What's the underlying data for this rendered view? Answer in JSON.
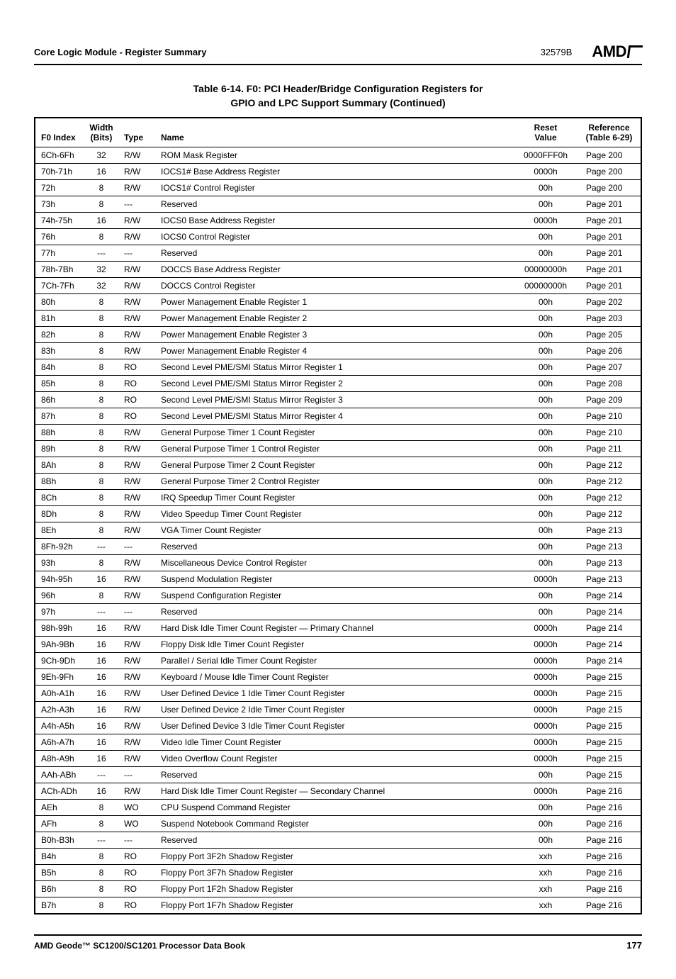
{
  "header": {
    "section": "Core Logic Module - Register Summary",
    "docnum": "32579B",
    "brand": "AMD"
  },
  "table": {
    "title_line1": "Table 6-14.  F0: PCI Header/Bridge Configuration Registers for",
    "title_line2": "GPIO and LPC Support Summary  (Continued)",
    "columns": {
      "idx": "F0 Index",
      "width_l1": "Width",
      "width_l2": "(Bits)",
      "type": "Type",
      "name": "Name",
      "reset_l1": "Reset",
      "reset_l2": "Value",
      "ref_l1": "Reference",
      "ref_l2": "(Table 6-29)"
    },
    "rows": [
      {
        "idx": "6Ch-6Fh",
        "width": "32",
        "type": "R/W",
        "name": "ROM Mask Register",
        "reset": "0000FFF0h",
        "ref": "Page 200"
      },
      {
        "idx": "70h-71h",
        "width": "16",
        "type": "R/W",
        "name": "IOCS1# Base Address Register",
        "reset": "0000h",
        "ref": "Page 200"
      },
      {
        "idx": "72h",
        "width": "8",
        "type": "R/W",
        "name": "IOCS1# Control Register",
        "reset": "00h",
        "ref": "Page 200"
      },
      {
        "idx": "73h",
        "width": "8",
        "type": "---",
        "name": "Reserved",
        "reset": "00h",
        "ref": "Page 201"
      },
      {
        "idx": "74h-75h",
        "width": "16",
        "type": "R/W",
        "name": "IOCS0 Base Address Register",
        "reset": "0000h",
        "ref": "Page 201"
      },
      {
        "idx": "76h",
        "width": "8",
        "type": "R/W",
        "name": "IOCS0 Control Register",
        "reset": "00h",
        "ref": "Page 201"
      },
      {
        "idx": "77h",
        "width": "---",
        "type": "---",
        "name": "Reserved",
        "reset": "00h",
        "ref": "Page 201"
      },
      {
        "idx": "78h-7Bh",
        "width": "32",
        "type": "R/W",
        "name": "DOCCS Base Address Register",
        "reset": "00000000h",
        "ref": "Page 201"
      },
      {
        "idx": "7Ch-7Fh",
        "width": "32",
        "type": "R/W",
        "name": "DOCCS Control Register",
        "reset": "00000000h",
        "ref": "Page 201"
      },
      {
        "idx": "80h",
        "width": "8",
        "type": "R/W",
        "name": "Power Management Enable Register 1",
        "reset": "00h",
        "ref": "Page 202"
      },
      {
        "idx": "81h",
        "width": "8",
        "type": "R/W",
        "name": "Power Management Enable Register 2",
        "reset": "00h",
        "ref": "Page 203"
      },
      {
        "idx": "82h",
        "width": "8",
        "type": "R/W",
        "name": "Power Management Enable Register 3",
        "reset": "00h",
        "ref": "Page 205"
      },
      {
        "idx": "83h",
        "width": "8",
        "type": "R/W",
        "name": "Power Management Enable Register 4",
        "reset": "00h",
        "ref": "Page 206"
      },
      {
        "idx": "84h",
        "width": "8",
        "type": "RO",
        "name": "Second Level PME/SMI Status Mirror Register 1",
        "reset": "00h",
        "ref": "Page 207"
      },
      {
        "idx": "85h",
        "width": "8",
        "type": "RO",
        "name": "Second Level PME/SMI Status Mirror Register 2",
        "reset": "00h",
        "ref": "Page 208"
      },
      {
        "idx": "86h",
        "width": "8",
        "type": "RO",
        "name": "Second Level PME/SMI Status Mirror Register 3",
        "reset": "00h",
        "ref": "Page 209"
      },
      {
        "idx": "87h",
        "width": "8",
        "type": "RO",
        "name": "Second Level PME/SMI Status Mirror Register 4",
        "reset": "00h",
        "ref": "Page 210"
      },
      {
        "idx": "88h",
        "width": "8",
        "type": "R/W",
        "name": "General Purpose Timer 1 Count Register",
        "reset": "00h",
        "ref": "Page 210"
      },
      {
        "idx": "89h",
        "width": "8",
        "type": "R/W",
        "name": "General Purpose Timer 1 Control Register",
        "reset": "00h",
        "ref": "Page 211"
      },
      {
        "idx": "8Ah",
        "width": "8",
        "type": "R/W",
        "name": "General Purpose Timer 2 Count Register",
        "reset": "00h",
        "ref": "Page 212"
      },
      {
        "idx": "8Bh",
        "width": "8",
        "type": "R/W",
        "name": "General Purpose Timer 2 Control Register",
        "reset": "00h",
        "ref": "Page 212"
      },
      {
        "idx": "8Ch",
        "width": "8",
        "type": "R/W",
        "name": "IRQ Speedup Timer Count Register",
        "reset": "00h",
        "ref": "Page 212"
      },
      {
        "idx": "8Dh",
        "width": "8",
        "type": "R/W",
        "name": "Video Speedup Timer Count Register",
        "reset": "00h",
        "ref": "Page 212"
      },
      {
        "idx": "8Eh",
        "width": "8",
        "type": "R/W",
        "name": "VGA Timer Count Register",
        "reset": "00h",
        "ref": "Page 213"
      },
      {
        "idx": "8Fh-92h",
        "width": "---",
        "type": "---",
        "name": "Reserved",
        "reset": "00h",
        "ref": "Page 213"
      },
      {
        "idx": "93h",
        "width": "8",
        "type": "R/W",
        "name": "Miscellaneous Device Control Register",
        "reset": "00h",
        "ref": "Page 213"
      },
      {
        "idx": "94h-95h",
        "width": "16",
        "type": "R/W",
        "name": "Suspend Modulation Register",
        "reset": "0000h",
        "ref": "Page 213"
      },
      {
        "idx": "96h",
        "width": "8",
        "type": "R/W",
        "name": "Suspend Configuration Register",
        "reset": "00h",
        "ref": "Page 214"
      },
      {
        "idx": "97h",
        "width": "---",
        "type": "---",
        "name": "Reserved",
        "reset": "00h",
        "ref": "Page 214"
      },
      {
        "idx": "98h-99h",
        "width": "16",
        "type": "R/W",
        "name": "Hard Disk Idle Timer Count Register — Primary Channel",
        "reset": "0000h",
        "ref": "Page 214"
      },
      {
        "idx": "9Ah-9Bh",
        "width": "16",
        "type": "R/W",
        "name": "Floppy Disk Idle Timer Count Register",
        "reset": "0000h",
        "ref": "Page 214"
      },
      {
        "idx": "9Ch-9Dh",
        "width": "16",
        "type": "R/W",
        "name": "Parallel / Serial Idle Timer Count Register",
        "reset": "0000h",
        "ref": "Page 214"
      },
      {
        "idx": "9Eh-9Fh",
        "width": "16",
        "type": "R/W",
        "name": "Keyboard / Mouse Idle Timer Count Register",
        "reset": "0000h",
        "ref": "Page 215"
      },
      {
        "idx": "A0h-A1h",
        "width": "16",
        "type": "R/W",
        "name": "User Defined Device 1 Idle Timer Count Register",
        "reset": "0000h",
        "ref": "Page 215"
      },
      {
        "idx": "A2h-A3h",
        "width": "16",
        "type": "R/W",
        "name": "User Defined Device 2 Idle Timer Count Register",
        "reset": "0000h",
        "ref": "Page 215"
      },
      {
        "idx": "A4h-A5h",
        "width": "16",
        "type": "R/W",
        "name": "User Defined Device 3 Idle Timer Count Register",
        "reset": "0000h",
        "ref": "Page 215"
      },
      {
        "idx": "A6h-A7h",
        "width": "16",
        "type": "R/W",
        "name": "Video Idle Timer Count Register",
        "reset": "0000h",
        "ref": "Page 215"
      },
      {
        "idx": "A8h-A9h",
        "width": "16",
        "type": "R/W",
        "name": "Video Overflow Count Register",
        "reset": "0000h",
        "ref": "Page 215"
      },
      {
        "idx": "AAh-ABh",
        "width": "---",
        "type": "---",
        "name": "Reserved",
        "reset": "00h",
        "ref": "Page 215"
      },
      {
        "idx": "ACh-ADh",
        "width": "16",
        "type": "R/W",
        "name": "Hard Disk Idle Timer Count Register — Secondary Channel",
        "reset": "0000h",
        "ref": "Page 216"
      },
      {
        "idx": "AEh",
        "width": "8",
        "type": "WO",
        "name": "CPU Suspend Command Register",
        "reset": "00h",
        "ref": "Page 216"
      },
      {
        "idx": "AFh",
        "width": "8",
        "type": "WO",
        "name": "Suspend Notebook Command Register",
        "reset": "00h",
        "ref": "Page 216"
      },
      {
        "idx": "B0h-B3h",
        "width": "---",
        "type": "---",
        "name": "Reserved",
        "reset": "00h",
        "ref": "Page 216"
      },
      {
        "idx": "B4h",
        "width": "8",
        "type": "RO",
        "name": "Floppy Port 3F2h Shadow Register",
        "reset": "xxh",
        "ref": "Page 216"
      },
      {
        "idx": "B5h",
        "width": "8",
        "type": "RO",
        "name": "Floppy Port 3F7h Shadow Register",
        "reset": "xxh",
        "ref": "Page 216"
      },
      {
        "idx": "B6h",
        "width": "8",
        "type": "RO",
        "name": "Floppy Port 1F2h Shadow Register",
        "reset": "xxh",
        "ref": "Page 216"
      },
      {
        "idx": "B7h",
        "width": "8",
        "type": "RO",
        "name": "Floppy Port 1F7h Shadow Register",
        "reset": "xxh",
        "ref": "Page 216"
      }
    ]
  },
  "footer": {
    "left": "AMD Geode™ SC1200/SC1201 Processor Data Book",
    "page": "177"
  }
}
